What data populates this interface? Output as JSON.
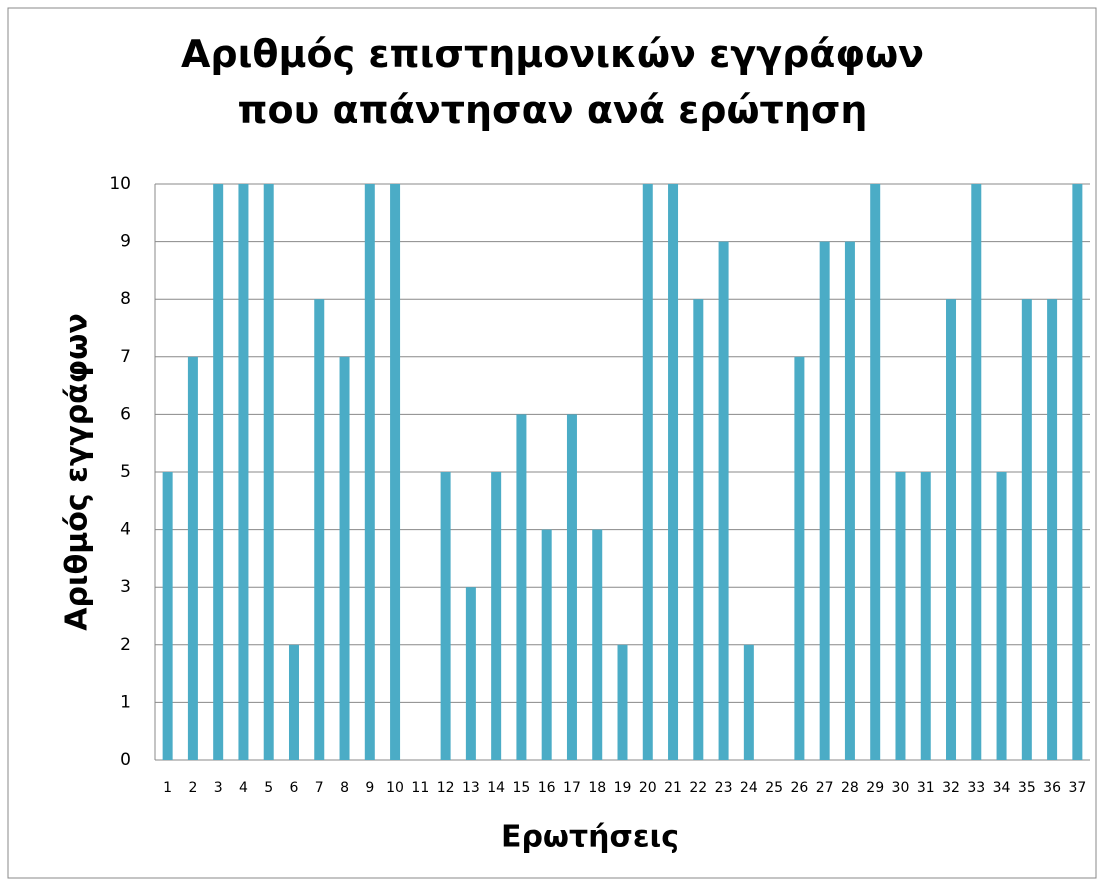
{
  "chart_data": {
    "type": "bar",
    "title": "Αριθμός επιστημονικών εγγράφων που απάντησαν ανά ερώτηση",
    "x_label": "Ερωτήσεις",
    "y_label": "Αριθμός εγγράφων",
    "categories": [
      "1",
      "2",
      "3",
      "4",
      "5",
      "6",
      "7",
      "8",
      "9",
      "10",
      "11",
      "12",
      "13",
      "14",
      "15",
      "16",
      "17",
      "18",
      "19",
      "20",
      "21",
      "22",
      "23",
      "24",
      "25",
      "26",
      "27",
      "28",
      "29",
      "30",
      "31",
      "32",
      "33",
      "34",
      "35",
      "36",
      "37"
    ],
    "values": [
      5,
      7,
      10,
      10,
      10,
      2,
      8,
      7,
      10,
      10,
      0,
      5,
      3,
      5,
      6,
      4,
      6,
      4,
      2,
      10,
      10,
      8,
      9,
      2,
      0,
      7,
      9,
      9,
      10,
      5,
      5,
      8,
      10,
      5,
      8,
      8,
      10
    ],
    "color": "#4bacc6",
    "ylim": [
      0,
      10
    ],
    "yticks": [
      0,
      1,
      2,
      3,
      4,
      5,
      6,
      7,
      8,
      9,
      10
    ],
    "grid": true
  }
}
